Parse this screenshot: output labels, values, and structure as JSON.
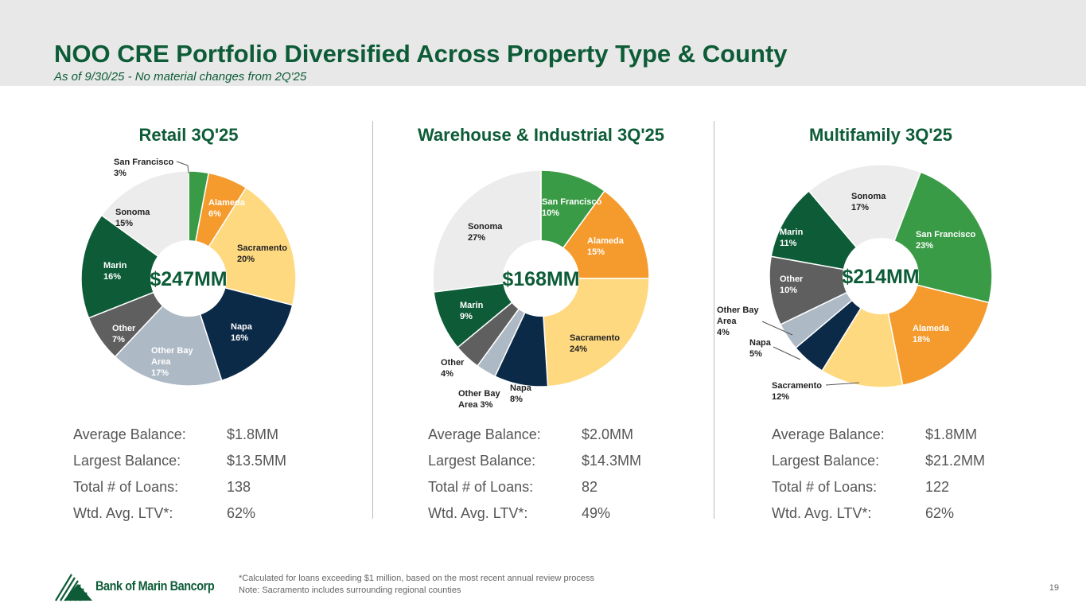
{
  "header": {
    "title": "NOO CRE Portfolio Diversified Across Property Type & County",
    "subtitle": "As of 9/30/25 - No material changes from 2Q'25"
  },
  "colors": {
    "San Francisco": "#3a9b46",
    "Alameda": "#f59a2c",
    "Sacramento": "#fed980",
    "Napa": "#0b2a47",
    "Other Bay Area": "#adb9c5",
    "Other": "#5f5f5f",
    "Marin": "#0d5c37",
    "Sonoma": "#ececec"
  },
  "chart_data": [
    {
      "type": "pie",
      "title": "Retail 3Q'25",
      "center_label": "$247MM",
      "categories": [
        "San Francisco",
        "Alameda",
        "Sacramento",
        "Napa",
        "Other Bay Area",
        "Other",
        "Marin",
        "Sonoma"
      ],
      "values": [
        3,
        6,
        20,
        16,
        17,
        7,
        16,
        15
      ],
      "unit": "%",
      "stats": [
        [
          "Average Balance:",
          "$1.8MM"
        ],
        [
          "Largest Balance:",
          "$13.5MM"
        ],
        [
          "Total # of Loans:",
          "138"
        ],
        [
          "Wtd. Avg. LTV*:",
          "62%"
        ]
      ]
    },
    {
      "type": "pie",
      "title": "Warehouse & Industrial 3Q'25",
      "center_label": "$168MM",
      "categories": [
        "San Francisco",
        "Alameda",
        "Sacramento",
        "Napa",
        "Other Bay Area",
        "Other",
        "Marin",
        "Sonoma"
      ],
      "values": [
        10,
        15,
        24,
        8,
        3,
        4,
        9,
        27
      ],
      "unit": "%",
      "stats": [
        [
          "Average Balance:",
          "$2.0MM"
        ],
        [
          "Largest Balance:",
          "$14.3MM"
        ],
        [
          "Total # of Loans:",
          "82"
        ],
        [
          "Wtd. Avg. LTV*:",
          "49%"
        ]
      ]
    },
    {
      "type": "pie",
      "title": "Multifamily 3Q'25",
      "center_label": "$214MM",
      "categories": [
        "San Francisco",
        "Alameda",
        "Sacramento",
        "Napa",
        "Other Bay Area",
        "Other",
        "Marin",
        "Sonoma"
      ],
      "values": [
        23,
        18,
        12,
        5,
        4,
        10,
        11,
        17
      ],
      "unit": "%",
      "stats": [
        [
          "Average Balance:",
          "$1.8MM"
        ],
        [
          "Largest Balance:",
          "$21.2MM"
        ],
        [
          "Total # of Loans:",
          "122"
        ],
        [
          "Wtd. Avg. LTV*:",
          "62%"
        ]
      ]
    }
  ],
  "footer": {
    "note1": "*Calculated for loans exceeding $1 million, based on the most recent annual review process",
    "note2": "Note: Sacramento includes surrounding regional counties",
    "page": "19",
    "logo": "Bank of Marin Bancorp"
  }
}
